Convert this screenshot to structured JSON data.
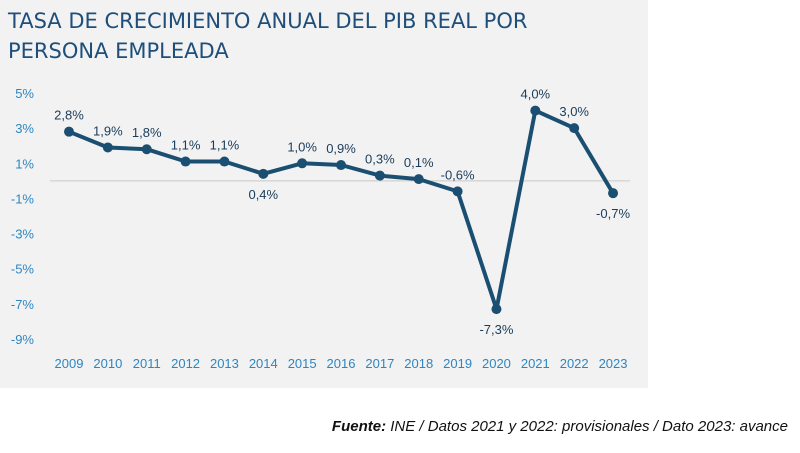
{
  "chart_data": {
    "type": "line",
    "title_lines": [
      "TASA DE CRECIMIENTO ANUAL DEL PIB REAL POR",
      "PERSONA EMPLEADA"
    ],
    "x": [
      "2009",
      "2010",
      "2011",
      "2012",
      "2013",
      "2014",
      "2015",
      "2016",
      "2017",
      "2018",
      "2019",
      "2020",
      "2021",
      "2022",
      "2023"
    ],
    "series": [
      {
        "values": [
          2.8,
          1.9,
          1.8,
          1.1,
          1.1,
          0.4,
          1.0,
          0.9,
          0.3,
          0.1,
          -0.6,
          -7.3,
          4.0,
          3.0,
          -0.7
        ],
        "labels": [
          "2,8%",
          "1,9%",
          "1,8%",
          "1,1%",
          "1,1%",
          "0,4%",
          "1,0%",
          "0,9%",
          "0,3%",
          "0,1%",
          "-0,6%",
          "-7,3%",
          "4,0%",
          "3,0%",
          "-0,7%"
        ]
      }
    ],
    "ylim": [
      -9,
      5
    ],
    "yticks": [
      5,
      3,
      1,
      -1,
      -3,
      -5,
      -7,
      -9
    ],
    "ytick_labels": [
      "5%",
      "3%",
      "1%",
      "-1%",
      "-3%",
      "-5%",
      "-7%",
      "-9%"
    ],
    "grid": false,
    "zero_line": true,
    "colors": {
      "line": "#1b4f72",
      "title": "#1e4e79",
      "ticks": "#2e86c1",
      "labels": "#1a3c5a",
      "zero": "#c8c8c8"
    }
  },
  "source": {
    "label": "Fuente:",
    "text": " INE / Datos 2021 y 2022: provisionales / Dato 2023: avance"
  }
}
